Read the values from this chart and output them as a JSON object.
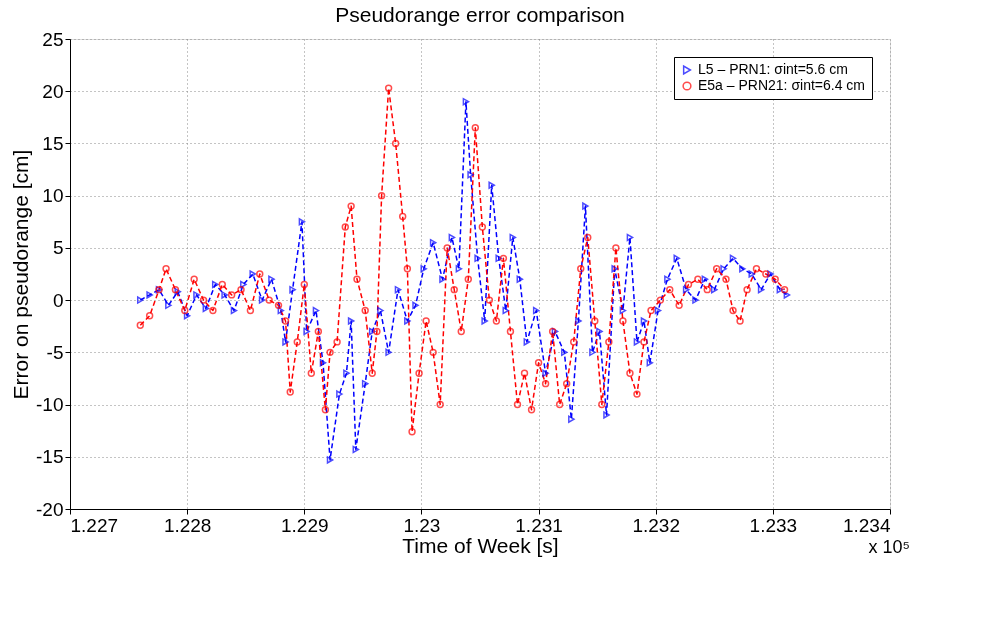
{
  "chart_data": {
    "type": "line",
    "title": "Pseudorange error comparison",
    "xlabel": "Time of Week [s]",
    "ylabel": "Error on pseudorange [cm]",
    "annotations": [
      "x 10⁵"
    ],
    "xlim": [
      1.227,
      1.234
    ],
    "xticks": [
      1.227,
      1.228,
      1.229,
      1.23,
      1.231,
      1.232,
      1.233,
      1.234
    ],
    "ylim": [
      -20,
      25
    ],
    "yticks": [
      -20,
      -15,
      -10,
      -5,
      0,
      5,
      10,
      15,
      20,
      25
    ],
    "grid": true,
    "legend": "top right",
    "line_style": "dashed",
    "series": [
      {
        "name": "L5 – PRN1: σint=5.6 cm",
        "color": "#0000ff",
        "marker": "triangle",
        "x": [
          1.2276,
          1.22768,
          1.22776,
          1.22784,
          1.22792,
          1.228,
          1.22808,
          1.22816,
          1.22824,
          1.22832,
          1.2284,
          1.22848,
          1.22856,
          1.22864,
          1.22872,
          1.2288,
          1.22884,
          1.2289,
          1.22898,
          1.22902,
          1.2291,
          1.22916,
          1.22922,
          1.2293,
          1.22936,
          1.2294,
          1.22944,
          1.22952,
          1.22958,
          1.22965,
          1.22972,
          1.2298,
          1.22988,
          1.22995,
          1.23002,
          1.2301,
          1.23018,
          1.23026,
          1.23032,
          1.23038,
          1.23042,
          1.23048,
          1.23054,
          1.2306,
          1.23066,
          1.23072,
          1.23078,
          1.23084,
          1.2309,
          1.23098,
          1.23106,
          1.23114,
          1.23122,
          1.23128,
          1.23134,
          1.2314,
          1.23146,
          1.23152,
          1.23158,
          1.23165,
          1.23172,
          1.23178,
          1.23184,
          1.2319,
          1.23195,
          1.23202,
          1.2321,
          1.23218,
          1.23226,
          1.23234,
          1.23242,
          1.2325,
          1.23258,
          1.23266,
          1.23274,
          1.23282,
          1.2329,
          1.23298,
          1.23306,
          1.23312
        ],
        "values": [
          0,
          0.5,
          1,
          -0.5,
          0.8,
          -1.5,
          0.5,
          -0.8,
          1.5,
          0.5,
          -1,
          1.5,
          2.5,
          0,
          2,
          -1,
          -4,
          1,
          7.5,
          -3,
          -1,
          -6,
          -15.3,
          -9,
          -7,
          -2,
          -14.3,
          -8,
          -3,
          -1,
          -5,
          1,
          -2,
          -0.5,
          3,
          5.5,
          2,
          6,
          3,
          19,
          12,
          4,
          -2,
          11,
          4,
          -1,
          6,
          2,
          -4,
          -1,
          -7,
          -3,
          -5,
          -11.4,
          -2,
          9,
          -5,
          -3,
          -11,
          3,
          -1,
          6,
          -4,
          -2,
          -6,
          -1,
          2,
          4,
          1,
          0,
          2,
          1,
          3,
          4,
          3,
          2.5,
          1,
          2.5,
          1,
          0.5
        ]
      },
      {
        "name": "E5a – PRN21: σint=6.4 cm",
        "color": "#ff0000",
        "marker": "circle",
        "x": [
          1.2276,
          1.22768,
          1.22776,
          1.22782,
          1.2279,
          1.22798,
          1.22806,
          1.22814,
          1.22822,
          1.2283,
          1.22838,
          1.22846,
          1.22854,
          1.22862,
          1.2287,
          1.22878,
          1.22884,
          1.22888,
          1.22894,
          1.229,
          1.22906,
          1.22912,
          1.22918,
          1.22922,
          1.22928,
          1.22935,
          1.2294,
          1.22945,
          1.22952,
          1.22958,
          1.22962,
          1.22966,
          1.22972,
          1.22978,
          1.22984,
          1.22988,
          1.22992,
          1.22998,
          1.23004,
          1.2301,
          1.23016,
          1.23022,
          1.23028,
          1.23034,
          1.2304,
          1.23046,
          1.23052,
          1.23058,
          1.23064,
          1.2307,
          1.23076,
          1.23082,
          1.23088,
          1.23094,
          1.231,
          1.23106,
          1.23112,
          1.23118,
          1.23124,
          1.2313,
          1.23136,
          1.23142,
          1.23148,
          1.23154,
          1.2316,
          1.23166,
          1.23172,
          1.23178,
          1.23184,
          1.2319,
          1.23196,
          1.23204,
          1.23212,
          1.2322,
          1.23228,
          1.23236,
          1.23244,
          1.23252,
          1.2326,
          1.23266,
          1.23272,
          1.23278,
          1.23286,
          1.23294,
          1.23302,
          1.2331
        ],
        "values": [
          -2.4,
          -1.5,
          1,
          3,
          1,
          -1,
          2,
          0,
          -1,
          1.5,
          0.5,
          1,
          -1,
          2.5,
          0,
          -0.5,
          -2,
          -8.8,
          -4,
          1.5,
          -7,
          -3,
          -10.5,
          -5,
          -4,
          7,
          9,
          2,
          -1,
          -7,
          -3,
          10,
          20.3,
          15,
          8,
          3,
          -12.6,
          -7,
          -2,
          -5,
          -10,
          5,
          1,
          -3,
          2,
          16.5,
          7,
          0,
          -2,
          4,
          -3,
          -10,
          -7,
          -10.5,
          -6,
          -8,
          -3,
          -10,
          -8,
          -4,
          3,
          6,
          -2,
          -10,
          -4,
          5,
          -2,
          -7,
          -9,
          -4,
          -1,
          0,
          1,
          -0.5,
          1.5,
          2,
          1,
          3,
          2,
          -1,
          -2,
          1,
          3,
          2.5,
          2,
          1
        ]
      }
    ]
  }
}
